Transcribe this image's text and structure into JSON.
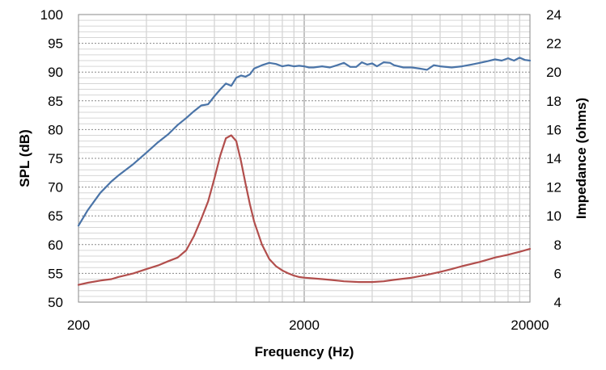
{
  "chart_data": {
    "type": "line",
    "title": "",
    "xlabel": "Frequency (Hz)",
    "ylabel_left": "SPL (dB)",
    "ylabel_right": "Impedance (ohms)",
    "x_scale": "log",
    "xlim": [
      200,
      20000
    ],
    "x_ticks": [
      "200",
      "2000",
      "20000"
    ],
    "ylim_left": [
      50,
      100
    ],
    "y_ticks_left": [
      "50",
      "55",
      "60",
      "65",
      "70",
      "75",
      "80",
      "85",
      "90",
      "95",
      "100"
    ],
    "ylim_right": [
      4,
      24
    ],
    "y_ticks_right": [
      "4",
      "6",
      "8",
      "10",
      "12",
      "14",
      "16",
      "18",
      "20",
      "22",
      "24"
    ],
    "grid": true,
    "series": [
      {
        "axis": "left",
        "color": "#4a74a8",
        "x": [
          200,
          220,
          250,
          280,
          300,
          350,
          400,
          450,
          500,
          550,
          600,
          650,
          700,
          750,
          800,
          850,
          900,
          950,
          1000,
          1050,
          1100,
          1150,
          1200,
          1300,
          1400,
          1500,
          1600,
          1700,
          1800,
          1900,
          2000,
          2100,
          2200,
          2400,
          2600,
          2800,
          3000,
          3200,
          3400,
          3600,
          3800,
          4000,
          4200,
          4500,
          4800,
          5000,
          5500,
          6000,
          6500,
          7000,
          7500,
          8000,
          9000,
          10000,
          11000,
          12000,
          13000,
          14000,
          15000,
          16000,
          17000,
          18000,
          19000,
          20000
        ],
        "values": [
          63.3,
          66.0,
          69.0,
          71.0,
          72.0,
          74.0,
          76.0,
          77.8,
          79.2,
          80.8,
          82.0,
          83.2,
          84.2,
          84.4,
          85.8,
          87.0,
          88.0,
          87.6,
          89.0,
          89.4,
          89.2,
          89.6,
          90.6,
          91.2,
          91.6,
          91.4,
          91.0,
          91.2,
          91.0,
          91.1,
          91.0,
          90.8,
          90.8,
          91.0,
          90.8,
          91.2,
          91.6,
          90.9,
          90.9,
          91.7,
          91.3,
          91.5,
          91.0,
          91.7,
          91.6,
          91.2,
          90.8,
          90.8,
          90.6,
          90.4,
          91.2,
          91.0,
          90.8,
          91.0,
          91.3,
          91.6,
          91.9,
          92.2,
          92.0,
          92.4,
          92.0,
          92.5,
          92.1,
          92.0
        ]
      },
      {
        "axis": "right",
        "color": "#b24e4c",
        "x": [
          200,
          220,
          250,
          280,
          300,
          350,
          400,
          450,
          500,
          550,
          600,
          650,
          700,
          750,
          800,
          850,
          900,
          950,
          1000,
          1050,
          1100,
          1150,
          1200,
          1300,
          1400,
          1500,
          1600,
          1700,
          1800,
          1900,
          2000,
          2200,
          2400,
          2600,
          2800,
          3000,
          3500,
          4000,
          4500,
          5000,
          6000,
          7000,
          8000,
          9000,
          10000,
          12000,
          14000,
          16000,
          18000,
          20000
        ],
        "values": [
          5.2,
          5.35,
          5.5,
          5.6,
          5.75,
          6.0,
          6.3,
          6.55,
          6.85,
          7.1,
          7.6,
          8.6,
          9.8,
          11.0,
          12.6,
          14.2,
          15.4,
          15.6,
          15.2,
          13.8,
          12.2,
          10.8,
          9.6,
          8.0,
          7.0,
          6.5,
          6.2,
          6.0,
          5.85,
          5.75,
          5.7,
          5.65,
          5.6,
          5.55,
          5.5,
          5.45,
          5.4,
          5.4,
          5.45,
          5.55,
          5.7,
          5.9,
          6.1,
          6.3,
          6.5,
          6.8,
          7.1,
          7.3,
          7.5,
          7.7
        ]
      }
    ]
  }
}
